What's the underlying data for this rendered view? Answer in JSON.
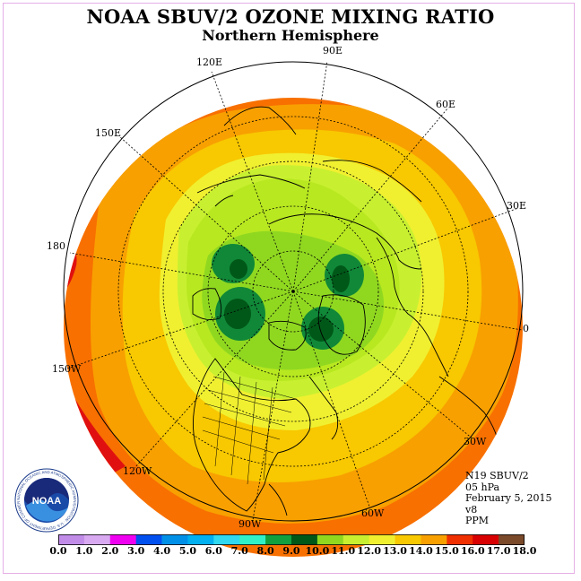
{
  "title": "NOAA SBUV/2 OZONE MIXING RATIO",
  "subtitle": "Northern Hemisphere",
  "longitude_labels": {
    "e90": "90E",
    "e60": "60E",
    "e30": "30E",
    "e0": "0",
    "w30": "30W",
    "w60": "60W",
    "w90": "90W",
    "w120": "120W",
    "w150": "150W",
    "w180": "180",
    "e150": "150E",
    "e120": "120E"
  },
  "info": {
    "instrument": "N19 SBUV/2",
    "level": "05 hPa",
    "date": "February 5, 2015",
    "version": "v8",
    "units": "PPM"
  },
  "logo": {
    "text": "NOAA",
    "ring_text": "NATIONAL OCEANIC AND ATMOSPHERIC ADMINISTRATION · U.S. DEPARTMENT OF COMMERCE"
  },
  "colorbar": {
    "tick_labels": [
      "0.0",
      "1.0",
      "2.0",
      "3.0",
      "4.0",
      "5.0",
      "6.0",
      "7.0",
      "8.0",
      "9.0",
      "10.0",
      "11.0",
      "12.0",
      "13.0",
      "14.0",
      "15.0",
      "16.0",
      "17.0",
      "18.0"
    ],
    "colors": [
      "#c08ce8",
      "#d8a8f0",
      "#f000f0",
      "#2020d8",
      "#0050f0",
      "#0090e8",
      "#00b0f0",
      "#30d8f0",
      "#30f0c8",
      "#10a040",
      "#087828",
      "#005818",
      "#90d820",
      "#c8f030",
      "#f0f030",
      "#f8c800",
      "#f8a000",
      "#f87000",
      "#f03000",
      "#d80000",
      "#7a4a2a"
    ]
  },
  "map_data": {
    "projection": "north polar stereographic",
    "quantity": "ozone mixing ratio",
    "region_levels_ppm": {
      "outer_rim": "16-17",
      "mid_latitudes": "14-16",
      "subpolar": "12-14",
      "polar": "10-12",
      "local_minima": "9-10"
    }
  }
}
